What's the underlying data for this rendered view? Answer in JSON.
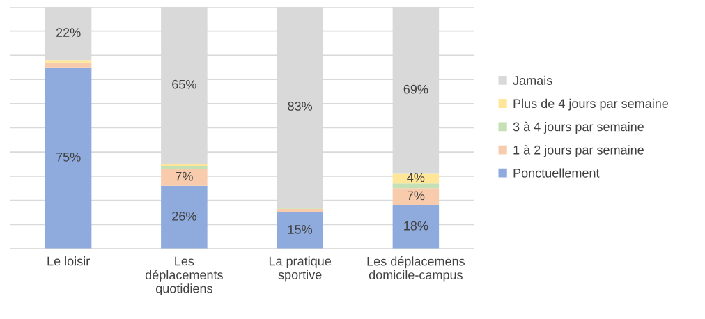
{
  "chart_data": {
    "type": "bar",
    "stacked": true,
    "categories": [
      "Le loisir",
      "Les\ndéplacements\nquotidiens",
      "La pratique\nsportive",
      "Les déplacemens\ndomicile-campus"
    ],
    "series": [
      {
        "name": "Ponctuellement",
        "color": "#8faadc",
        "values": [
          75,
          26,
          15,
          18
        ],
        "value_labels": [
          "75%",
          "26%",
          "15%",
          "18%"
        ]
      },
      {
        "name": "1 à 2 jours par semaine",
        "color": "#f8cbad",
        "values": [
          2,
          7,
          1.5,
          7
        ],
        "value_labels": [
          null,
          "7%",
          null,
          "7%"
        ]
      },
      {
        "name": "3 à 4 jours par semaine",
        "color": "#c5e0b4",
        "values": [
          0,
          1,
          0.5,
          2
        ],
        "value_labels": [
          null,
          null,
          null,
          null
        ]
      },
      {
        "name": "Plus de 4 jours par semaine",
        "color": "#ffe699",
        "values": [
          1,
          1,
          0,
          4
        ],
        "value_labels": [
          null,
          null,
          null,
          "4%"
        ]
      },
      {
        "name": "Jamais",
        "color": "#d9d9d9",
        "values": [
          22,
          65,
          83,
          69
        ],
        "value_labels": [
          "22%",
          "65%",
          "83%",
          "69%"
        ]
      }
    ],
    "ylim": [
      0,
      100
    ],
    "yticks": [
      {
        "value": 0,
        "label": null
      },
      {
        "value": 10,
        "label": null
      },
      {
        "value": 20,
        "label": null
      },
      {
        "value": 30,
        "label": null
      },
      {
        "value": 40,
        "label": null
      },
      {
        "value": 50,
        "label": null
      },
      {
        "value": 60,
        "label": null
      },
      {
        "value": 70,
        "label": null
      },
      {
        "value": 80,
        "label": null
      },
      {
        "value": 90,
        "label": null
      },
      {
        "value": 100,
        "label": null
      }
    ],
    "grid": "y",
    "legend": "right",
    "tick_labels": "x"
  }
}
